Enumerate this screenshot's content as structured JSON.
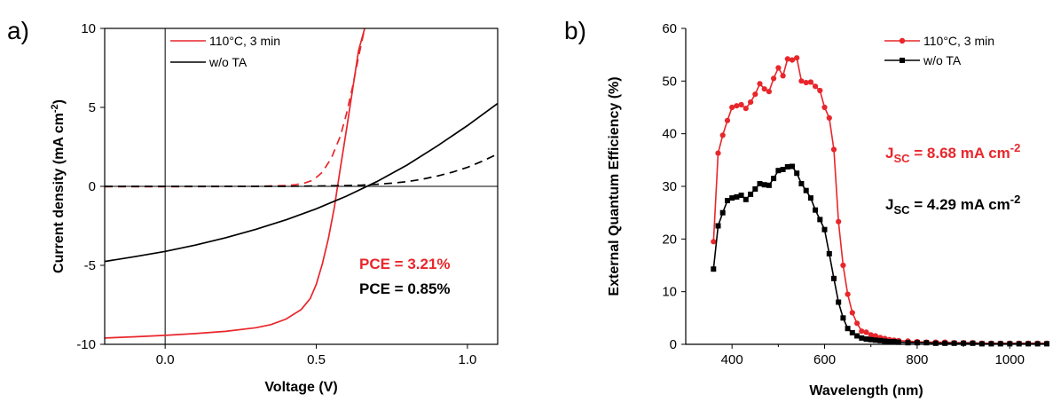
{
  "chart_data": [
    {
      "panel": "a)",
      "type": "line",
      "xlabel": "Voltage (V)",
      "ylabel_main": "Current density (mA cm",
      "ylabel_sup": "-2",
      "ylabel_tail": ")",
      "xlim": [
        -0.2,
        1.1
      ],
      "ylim": [
        -10,
        10
      ],
      "xticks": [
        0.0,
        0.5,
        1.0
      ],
      "xtick_labels": [
        "0.0",
        "0.5",
        "1.0"
      ],
      "yticks": [
        -10,
        -5,
        0,
        5,
        10
      ],
      "ytick_labels": [
        "-10",
        "-5",
        "0",
        "5",
        "10"
      ],
      "zero_lines": true,
      "legend_position": "top-left",
      "series": [
        {
          "name": "110°C, 3 min",
          "color": "#e8262b",
          "dash": "solid",
          "x": [
            -0.2,
            -0.1,
            0.0,
            0.1,
            0.2,
            0.3,
            0.35,
            0.4,
            0.45,
            0.48,
            0.5,
            0.52,
            0.54,
            0.56,
            0.58,
            0.6,
            0.62,
            0.64,
            0.66
          ],
          "y": [
            -9.6,
            -9.52,
            -9.43,
            -9.32,
            -9.18,
            -8.95,
            -8.75,
            -8.4,
            -7.8,
            -7.1,
            -6.2,
            -4.9,
            -3.3,
            -1.3,
            1.2,
            3.6,
            6.1,
            8.6,
            10.0
          ]
        },
        {
          "name": "",
          "color": "#e8262b",
          "dash": "dashed",
          "x": [
            -0.2,
            0.0,
            0.2,
            0.3,
            0.4,
            0.43,
            0.46,
            0.49,
            0.52,
            0.55,
            0.58,
            0.6,
            0.62,
            0.64,
            0.66
          ],
          "y": [
            -0.02,
            -0.02,
            -0.01,
            0.0,
            0.05,
            0.1,
            0.2,
            0.4,
            0.9,
            1.8,
            3.2,
            4.6,
            6.3,
            8.2,
            10.0
          ]
        },
        {
          "name": "w/o TA",
          "color": "#000000",
          "dash": "solid",
          "x": [
            -0.2,
            -0.1,
            0.0,
            0.1,
            0.2,
            0.3,
            0.4,
            0.5,
            0.6,
            0.7,
            0.8,
            0.9,
            1.0,
            1.1
          ],
          "y": [
            -4.75,
            -4.45,
            -4.12,
            -3.72,
            -3.25,
            -2.72,
            -2.12,
            -1.42,
            -0.62,
            0.3,
            1.35,
            2.55,
            3.85,
            5.25
          ]
        },
        {
          "name": "",
          "color": "#000000",
          "dash": "dashed",
          "x": [
            -0.2,
            0.0,
            0.2,
            0.4,
            0.5,
            0.6,
            0.65,
            0.7,
            0.75,
            0.8,
            0.85,
            0.9,
            0.95,
            1.0,
            1.05,
            1.1
          ],
          "y": [
            0.0,
            0.0,
            0.0,
            0.0,
            0.02,
            0.05,
            0.08,
            0.13,
            0.2,
            0.3,
            0.45,
            0.65,
            0.9,
            1.2,
            1.6,
            2.05
          ]
        }
      ],
      "annotations": [
        {
          "text": "PCE = 3.21%",
          "color": "#e8262b"
        },
        {
          "text": "PCE = 0.85%",
          "color": "#000000"
        }
      ]
    },
    {
      "panel": "b)",
      "type": "line",
      "xlabel": "Wavelength (nm)",
      "ylabel": "External Quantum Efficiency (%)",
      "xlim": [
        300,
        1080
      ],
      "ylim": [
        0,
        60
      ],
      "xticks": [
        400,
        600,
        800,
        1000
      ],
      "xtick_labels": [
        "400",
        "600",
        "800",
        "1000"
      ],
      "yticks": [
        0,
        10,
        20,
        30,
        40,
        50,
        60
      ],
      "ytick_labels": [
        "0",
        "10",
        "20",
        "30",
        "40",
        "50",
        "60"
      ],
      "legend_position": "top-right",
      "series": [
        {
          "name": "110°C, 3 min",
          "color": "#e8262b",
          "marker": "circle",
          "x": [
            360,
            370,
            380,
            390,
            400,
            410,
            420,
            430,
            440,
            450,
            460,
            470,
            480,
            490,
            500,
            510,
            520,
            530,
            540,
            550,
            560,
            570,
            580,
            590,
            600,
            610,
            620,
            630,
            640,
            650,
            660,
            670,
            680,
            690,
            700,
            710,
            720,
            730,
            740,
            750,
            760,
            780,
            800,
            820,
            840,
            860,
            880,
            900,
            920,
            940,
            960,
            980,
            1000,
            1020,
            1040,
            1060,
            1080
          ],
          "y": [
            19.5,
            36.3,
            39.7,
            42.5,
            45.0,
            45.3,
            45.5,
            44.8,
            46.0,
            47.5,
            49.5,
            48.5,
            48.0,
            50.5,
            52.5,
            51.0,
            54.2,
            54.0,
            54.4,
            50.0,
            49.7,
            49.8,
            49.0,
            48.2,
            45.0,
            43.0,
            37.0,
            23.3,
            15.0,
            9.5,
            6.0,
            4.0,
            2.5,
            2.3,
            1.8,
            1.6,
            1.3,
            1.1,
            0.9,
            0.8,
            0.7,
            0.6,
            0.5,
            0.4,
            0.4,
            0.4,
            0.3,
            0.3,
            0.3,
            0.2,
            0.2,
            0.2,
            0.2,
            0.2,
            0.2,
            0.2,
            0.2
          ]
        },
        {
          "name": "w/o TA",
          "color": "#000000",
          "marker": "square",
          "x": [
            360,
            370,
            380,
            390,
            400,
            410,
            420,
            430,
            440,
            450,
            460,
            470,
            480,
            490,
            500,
            510,
            520,
            530,
            540,
            550,
            560,
            570,
            580,
            590,
            600,
            610,
            620,
            630,
            640,
            650,
            660,
            670,
            680,
            690,
            700,
            710,
            720,
            730,
            740,
            750,
            760,
            780,
            800,
            820,
            840,
            860,
            880,
            900,
            920,
            940,
            960,
            980,
            1000,
            1020,
            1040,
            1060,
            1080
          ],
          "y": [
            14.3,
            22.5,
            25.0,
            27.3,
            27.8,
            28.0,
            28.3,
            27.5,
            28.5,
            29.5,
            30.5,
            30.3,
            30.2,
            31.5,
            33.0,
            33.2,
            33.7,
            33.8,
            32.5,
            30.5,
            29.2,
            27.8,
            25.5,
            23.7,
            21.8,
            17.2,
            12.5,
            8.0,
            5.0,
            3.0,
            2.2,
            1.6,
            1.2,
            1.0,
            0.9,
            0.8,
            0.7,
            0.6,
            0.5,
            0.5,
            0.4,
            0.3,
            0.3,
            0.3,
            0.2,
            0.2,
            0.2,
            0.2,
            0.2,
            0.1,
            0.1,
            0.1,
            0.1,
            0.1,
            0.1,
            0.1,
            0.1
          ]
        }
      ],
      "annotations": [
        {
          "main": "J",
          "sub": "SC",
          "value": " = 8.68 mA cm",
          "sup": "-2",
          "color": "#e8262b"
        },
        {
          "main": "J",
          "sub": "SC",
          "value": " = 4.29 mA cm",
          "sup": "-2",
          "color": "#000000"
        }
      ]
    }
  ]
}
